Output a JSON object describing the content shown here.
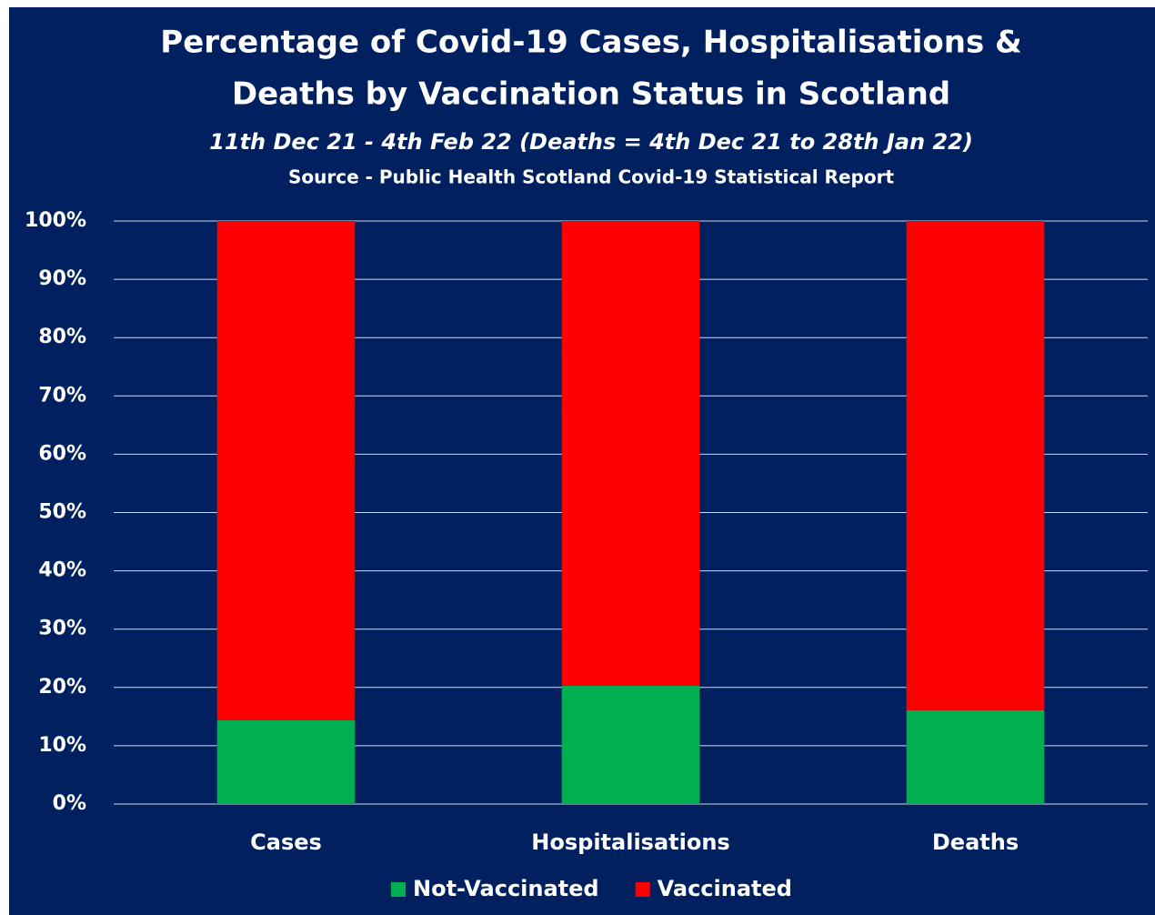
{
  "chart_data": {
    "type": "stacked_bar",
    "title": [
      "Percentage of Covid-19 Cases, Hospitalisations &",
      "Deaths by Vaccination Status in Scotland"
    ],
    "subtitle": "11th Dec 21 - 4th Feb 22 (Deaths = 4th Dec 21 to 28th Jan 22)",
    "source": "Source - Public Health Scotland Covid-19 Statistical Report",
    "categories": [
      "Cases",
      "Hospitalisations",
      "Deaths"
    ],
    "series": [
      {
        "name": "Not-Vaccinated",
        "color": "#00b050",
        "values": [
          14.4,
          20.3,
          16.1
        ]
      },
      {
        "name": "Vaccinated",
        "color": "#ff0000",
        "values": [
          85.6,
          79.7,
          83.9
        ]
      }
    ],
    "ylim": [
      0,
      100
    ],
    "yticks": [
      {
        "value": 0,
        "label": "0%"
      },
      {
        "value": 10,
        "label": "10%"
      },
      {
        "value": 20,
        "label": "20%"
      },
      {
        "value": 30,
        "label": "30%"
      },
      {
        "value": 40,
        "label": "40%"
      },
      {
        "value": 50,
        "label": "50%"
      },
      {
        "value": 60,
        "label": "60%"
      },
      {
        "value": 70,
        "label": "70%"
      },
      {
        "value": 80,
        "label": "80%"
      },
      {
        "value": 90,
        "label": "90%"
      },
      {
        "value": 100,
        "label": "100%"
      }
    ],
    "grid": true,
    "legend": "bottom"
  }
}
